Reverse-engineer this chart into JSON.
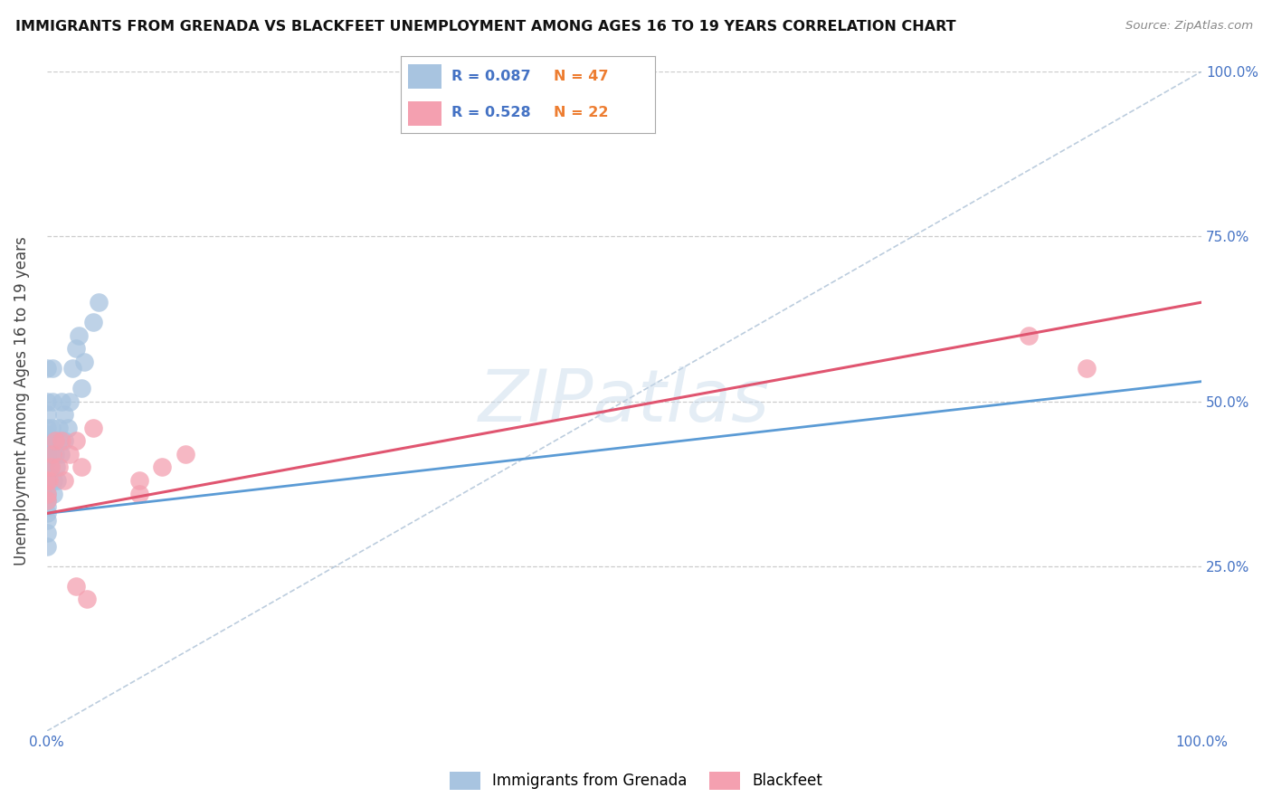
{
  "title": "IMMIGRANTS FROM GRENADA VS BLACKFEET UNEMPLOYMENT AMONG AGES 16 TO 19 YEARS CORRELATION CHART",
  "source": "Source: ZipAtlas.com",
  "ylabel": "Unemployment Among Ages 16 to 19 years",
  "watermark": "ZIPatlas",
  "xlim": [
    0,
    1.0
  ],
  "ylim": [
    0,
    1.0
  ],
  "xticks": [
    0.0,
    1.0
  ],
  "xtick_labels": [
    "0.0%",
    "100.0%"
  ],
  "ytick_labels_right": [
    "100.0%",
    "75.0%",
    "50.0%",
    "25.0%"
  ],
  "ytick_positions_right": [
    1.0,
    0.75,
    0.5,
    0.25
  ],
  "series1_label": "Immigrants from Grenada",
  "series1_color": "#a8c4e0",
  "series1_R": "0.087",
  "series1_N": "47",
  "series2_label": "Blackfeet",
  "series2_color": "#f4a0b0",
  "series2_R": "0.528",
  "series2_N": "22",
  "legend_R_color": "#4472c4",
  "legend_N_color": "#ed7d31",
  "trendline1_color": "#5b9bd5",
  "trendline2_color": "#e05570",
  "diagonal_color": "#a0b8d0",
  "grid_color": "#cccccc",
  "axis_color": "#4472c4",
  "background_color": "#ffffff",
  "series1_x": [
    0.0,
    0.0,
    0.0,
    0.0,
    0.0,
    0.0,
    0.0,
    0.0,
    0.0,
    0.0,
    0.0,
    0.0,
    0.0,
    0.0,
    0.0,
    0.0,
    0.0,
    0.0,
    0.0,
    0.0,
    0.002,
    0.003,
    0.003,
    0.004,
    0.004,
    0.005,
    0.005,
    0.006,
    0.006,
    0.007,
    0.008,
    0.009,
    0.01,
    0.01,
    0.012,
    0.013,
    0.015,
    0.015,
    0.018,
    0.02,
    0.022,
    0.025,
    0.028,
    0.03,
    0.032,
    0.04,
    0.045
  ],
  "series1_y": [
    0.28,
    0.3,
    0.32,
    0.33,
    0.34,
    0.35,
    0.36,
    0.37,
    0.38,
    0.39,
    0.4,
    0.41,
    0.42,
    0.43,
    0.44,
    0.45,
    0.46,
    0.48,
    0.5,
    0.55,
    0.38,
    0.4,
    0.42,
    0.44,
    0.46,
    0.5,
    0.55,
    0.36,
    0.38,
    0.42,
    0.4,
    0.38,
    0.44,
    0.46,
    0.42,
    0.5,
    0.44,
    0.48,
    0.46,
    0.5,
    0.55,
    0.58,
    0.6,
    0.52,
    0.56,
    0.62,
    0.65
  ],
  "series2_x": [
    0.0,
    0.0,
    0.0,
    0.002,
    0.003,
    0.005,
    0.007,
    0.01,
    0.013,
    0.015,
    0.02,
    0.025,
    0.03,
    0.04,
    0.85,
    0.9,
    0.025,
    0.035,
    0.08,
    0.1,
    0.12,
    0.08
  ],
  "series2_y": [
    0.35,
    0.38,
    0.36,
    0.38,
    0.4,
    0.42,
    0.44,
    0.4,
    0.44,
    0.38,
    0.42,
    0.44,
    0.4,
    0.46,
    0.6,
    0.55,
    0.22,
    0.2,
    0.38,
    0.4,
    0.42,
    0.36
  ],
  "trendline1_intercept": 0.33,
  "trendline1_slope": 0.2,
  "trendline2_intercept": 0.33,
  "trendline2_slope": 0.32
}
